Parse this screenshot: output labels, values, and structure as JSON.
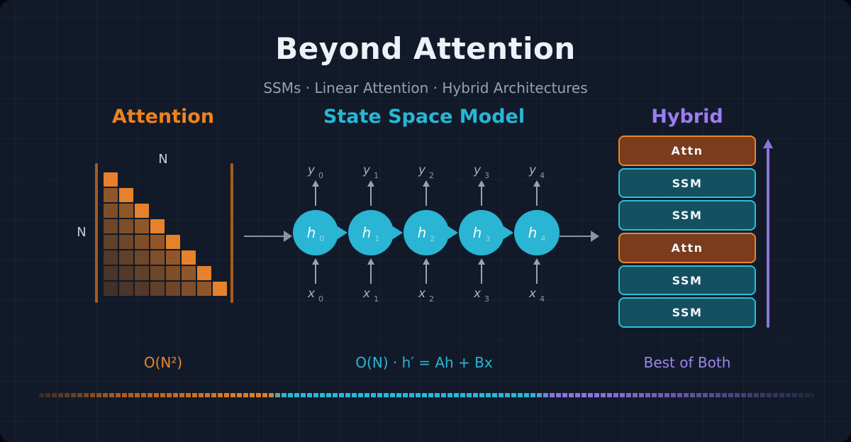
{
  "title": "Beyond Attention",
  "subtitle": "SSMs  ·  Linear Attention  ·  Hybrid Architectures",
  "colors": {
    "background": "#121a29",
    "accent_orange": "#e8822a",
    "accent_cyan": "#29b6d6",
    "accent_purple": "#9b7df0",
    "matrix_cell_rgb": "224,125,40",
    "matrix_diagonal": "#e5822b",
    "attn_block_fill": "#7b3c1d",
    "attn_block_border": "#e8872f",
    "ssm_block_fill": "#14505f",
    "ssm_block_border": "#27c0dc",
    "arrow_gray": "#99a2b2"
  },
  "attention": {
    "heading": "Attention",
    "n_label_top": "N",
    "n_label_left": "N",
    "matrix_rows": 8,
    "complexity": "O(N²)"
  },
  "ssm": {
    "heading": "State Space Model",
    "state_symbol": "h",
    "input_symbol": "x",
    "output_symbol": "y",
    "indices": [
      "0",
      "1",
      "2",
      "3",
      "4"
    ],
    "complexity": "O(N)  ·  h′ = Ah + Bx"
  },
  "hybrid": {
    "heading": "Hybrid",
    "blocks": [
      {
        "label": "Attn",
        "type": "attn"
      },
      {
        "label": "SSM",
        "type": "ssm"
      },
      {
        "label": "SSM",
        "type": "ssm"
      },
      {
        "label": "Attn",
        "type": "attn"
      },
      {
        "label": "SSM",
        "type": "ssm"
      },
      {
        "label": "SSM",
        "type": "ssm"
      }
    ],
    "caption": "Best of Both"
  }
}
